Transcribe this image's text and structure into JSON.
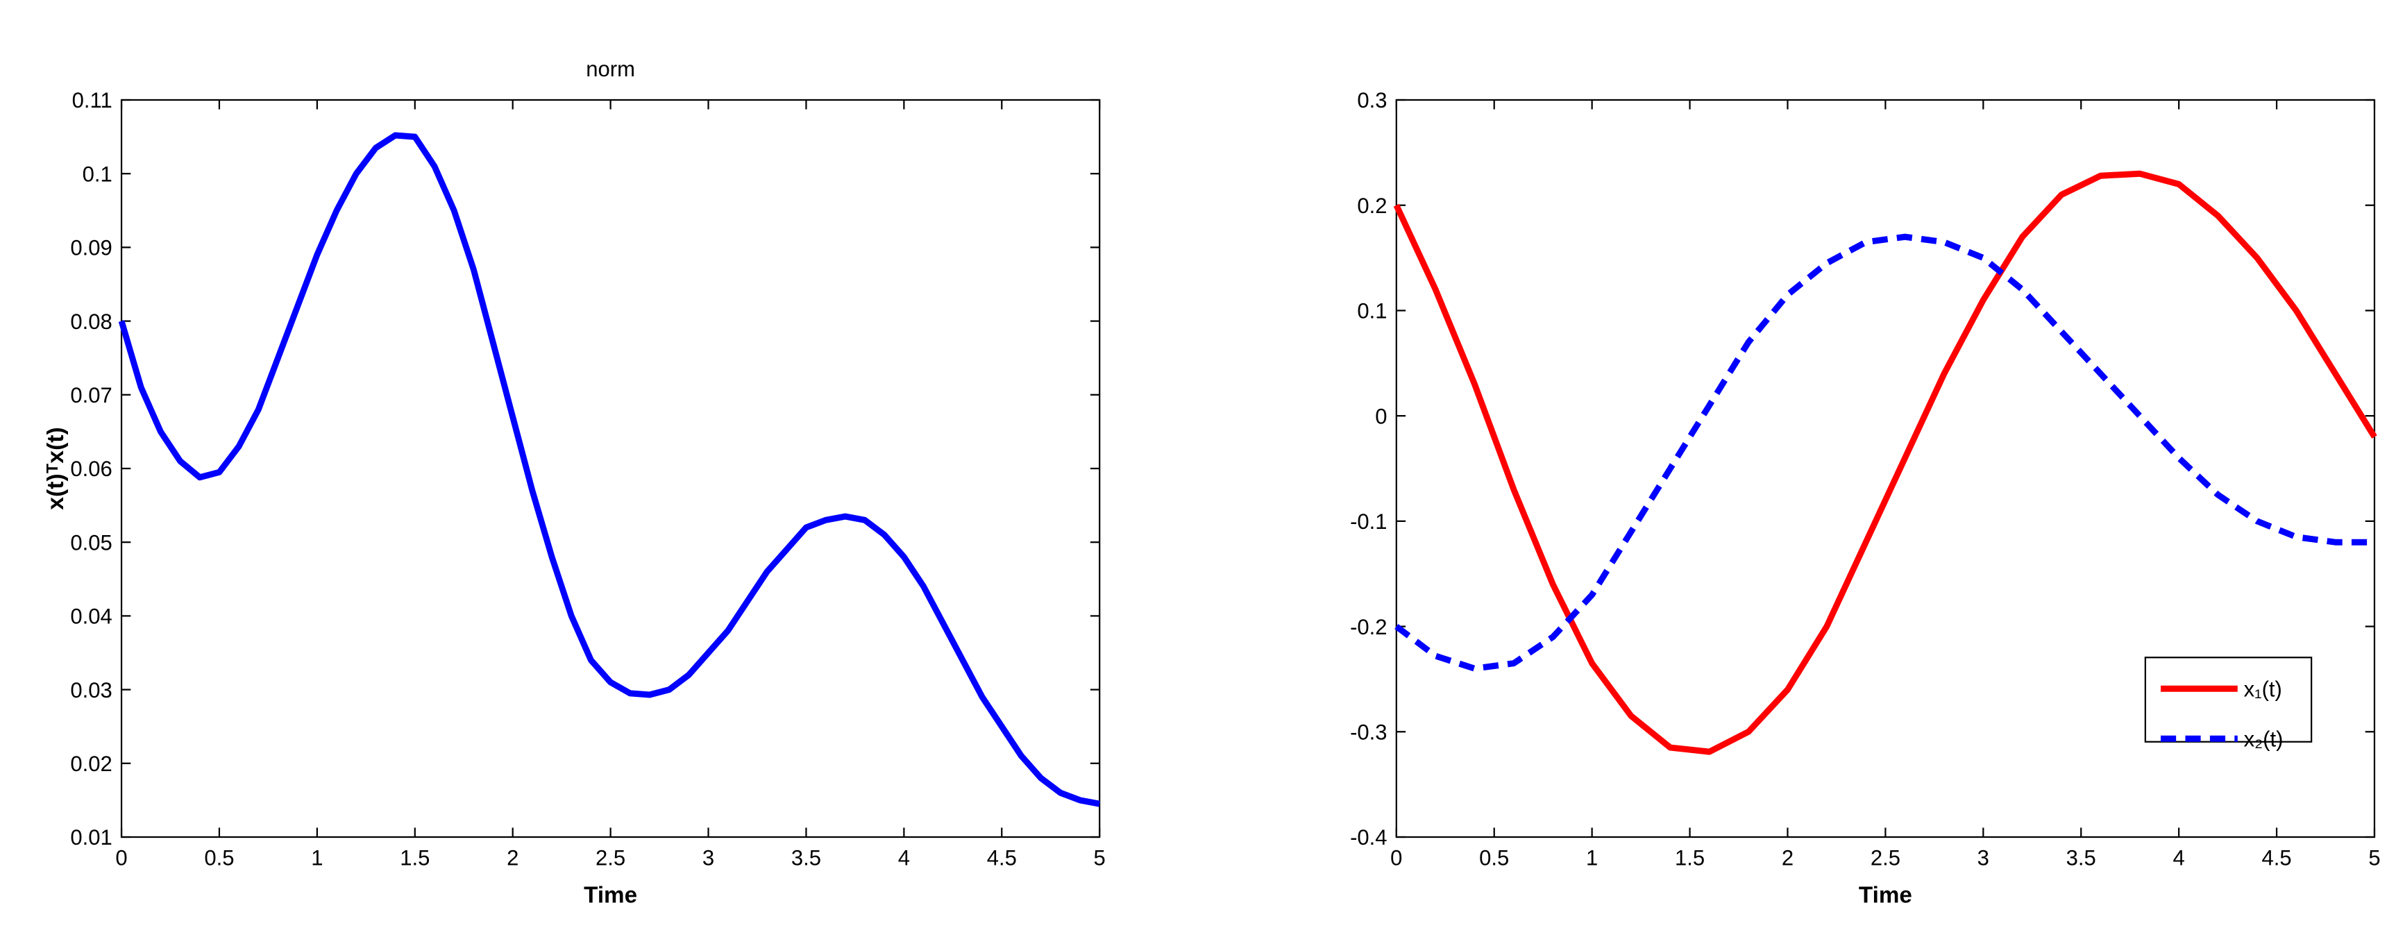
{
  "chart_data": [
    {
      "type": "line",
      "title": "norm",
      "x_label": "Time",
      "y_label": "x(t)ᵀx(t)",
      "x": [
        0,
        0.1,
        0.2,
        0.3,
        0.4,
        0.5,
        0.6,
        0.7,
        0.8,
        0.9,
        1.0,
        1.1,
        1.2,
        1.3,
        1.4,
        1.5,
        1.6,
        1.7,
        1.8,
        1.9,
        2.0,
        2.1,
        2.2,
        2.3,
        2.4,
        2.5,
        2.6,
        2.7,
        2.8,
        2.9,
        3.0,
        3.1,
        3.2,
        3.3,
        3.4,
        3.5,
        3.6,
        3.7,
        3.8,
        3.9,
        4.0,
        4.1,
        4.2,
        4.3,
        4.4,
        4.5,
        4.6,
        4.7,
        4.8,
        4.9,
        5.0
      ],
      "series": [
        {
          "color": "#0000ff",
          "style": "solid",
          "values": [
            0.08,
            0.071,
            0.065,
            0.061,
            0.0588,
            0.0595,
            0.063,
            0.068,
            0.075,
            0.082,
            0.089,
            0.095,
            0.1,
            0.1035,
            0.1052,
            0.105,
            0.101,
            0.095,
            0.087,
            0.077,
            0.067,
            0.057,
            0.048,
            0.04,
            0.034,
            0.031,
            0.0295,
            0.0293,
            0.03,
            0.032,
            0.035,
            0.038,
            0.042,
            0.046,
            0.049,
            0.052,
            0.053,
            0.0535,
            0.053,
            0.051,
            0.048,
            0.044,
            0.039,
            0.034,
            0.029,
            0.025,
            0.021,
            0.018,
            0.016,
            0.015,
            0.0145
          ]
        }
      ],
      "xlim": [
        0,
        5
      ],
      "xticks": [
        0,
        0.5,
        1,
        1.5,
        2,
        2.5,
        3,
        3.5,
        4,
        4.5,
        5
      ],
      "ylim": [
        0.01,
        0.11
      ],
      "yticks": [
        0.01,
        0.02,
        0.03,
        0.04,
        0.05,
        0.06,
        0.07,
        0.08,
        0.09,
        0.1,
        0.11
      ],
      "grid": false
    },
    {
      "type": "line",
      "x_label": "Time",
      "x": [
        0,
        0.2,
        0.4,
        0.6,
        0.8,
        1.0,
        1.2,
        1.4,
        1.6,
        1.8,
        2.0,
        2.2,
        2.4,
        2.6,
        2.8,
        3.0,
        3.2,
        3.4,
        3.6,
        3.8,
        4.0,
        4.2,
        4.4,
        4.6,
        4.8,
        5.0
      ],
      "series": [
        {
          "name": "x₁(t)",
          "color": "#ff0000",
          "style": "solid",
          "values": [
            0.2,
            0.12,
            0.03,
            -0.07,
            -0.16,
            -0.235,
            -0.285,
            -0.315,
            -0.319,
            -0.3,
            -0.26,
            -0.2,
            -0.12,
            -0.04,
            0.04,
            0.11,
            0.17,
            0.21,
            0.228,
            0.23,
            0.22,
            0.19,
            0.15,
            0.1,
            0.04,
            -0.02
          ]
        },
        {
          "name": "x₂(t)",
          "color": "#0000ff",
          "style": "dashed",
          "values": [
            -0.2,
            -0.228,
            -0.24,
            -0.235,
            -0.21,
            -0.17,
            -0.11,
            -0.05,
            0.01,
            0.07,
            0.115,
            0.145,
            0.165,
            0.17,
            0.165,
            0.15,
            0.12,
            0.08,
            0.04,
            0.0,
            -0.04,
            -0.075,
            -0.1,
            -0.115,
            -0.12,
            -0.12
          ]
        }
      ],
      "xlim": [
        0,
        5
      ],
      "xticks": [
        0,
        0.5,
        1,
        1.5,
        2,
        2.5,
        3,
        3.5,
        4,
        4.5,
        5
      ],
      "ylim": [
        -0.4,
        0.3
      ],
      "yticks": [
        -0.4,
        -0.3,
        -0.2,
        -0.1,
        0,
        0.1,
        0.2,
        0.3
      ],
      "grid": false,
      "legend": "southeast"
    }
  ]
}
